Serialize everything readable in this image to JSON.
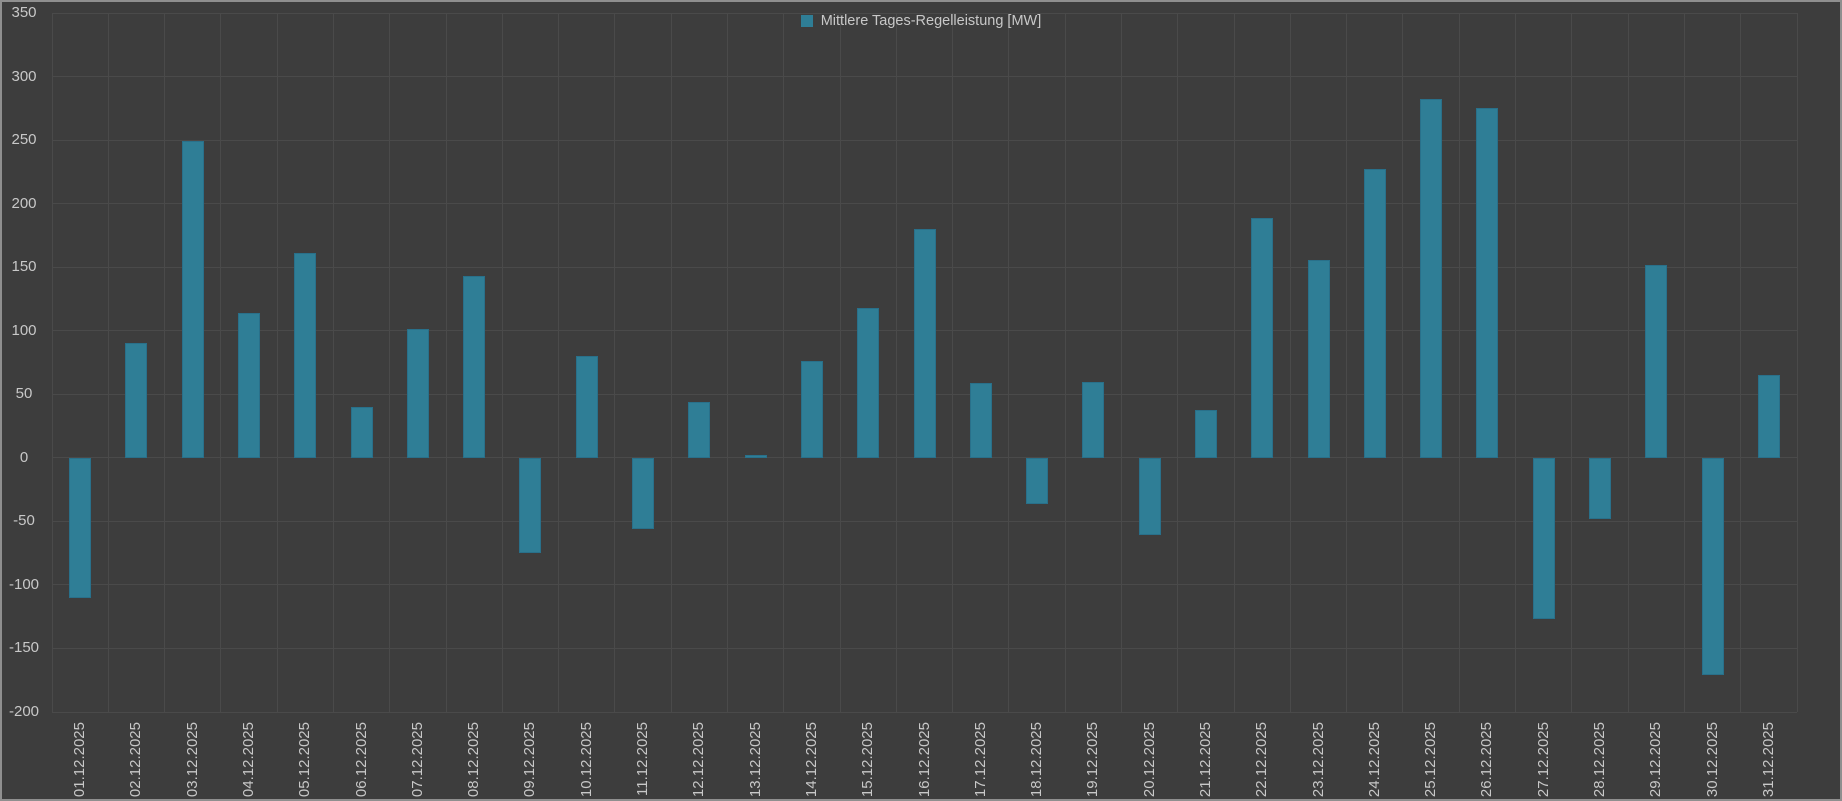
{
  "legend": {
    "label": "Mittlere Tages-Regelleistung [MW]"
  },
  "colors": {
    "background": "#3d3d3d",
    "frame_border": "#8f8f8f",
    "gridline": "#4a4a4a",
    "bar": "#2f7e96",
    "bar_edge": "#29708a",
    "text": "#c8c8c8"
  },
  "y_axis": {
    "ticks": [
      350,
      300,
      250,
      200,
      150,
      100,
      50,
      0,
      -50,
      -100,
      -150,
      -200
    ]
  },
  "chart_data": {
    "type": "bar",
    "title": "",
    "xlabel": "",
    "ylabel": "",
    "legend_entries": [
      "Mittlere Tages-Regelleistung [MW]"
    ],
    "legend_position": "top-center",
    "grid": true,
    "ylim": [
      -200,
      350
    ],
    "ytick_step": 50,
    "categories": [
      "01.12.2025",
      "02.12.2025",
      "03.12.2025",
      "04.12.2025",
      "05.12.2025",
      "06.12.2025",
      "07.12.2025",
      "08.12.2025",
      "09.12.2025",
      "10.12.2025",
      "11.12.2025",
      "12.12.2025",
      "13.12.2025",
      "14.12.2025",
      "15.12.2025",
      "16.12.2025",
      "17.12.2025",
      "18.12.2025",
      "19.12.2025",
      "20.12.2025",
      "21.12.2025",
      "22.12.2025",
      "23.12.2025",
      "24.12.2025",
      "25.12.2025",
      "26.12.2025",
      "27.12.2025",
      "28.12.2025",
      "29.12.2025",
      "30.12.2025",
      "31.12.2025"
    ],
    "series": [
      {
        "name": "Mittlere Tages-Regelleistung [MW]",
        "values": [
          -110,
          90,
          249,
          114,
          161,
          40,
          101,
          143,
          -75,
          80,
          -56,
          44,
          2,
          76,
          118,
          180,
          59,
          -36,
          60,
          -61,
          38,
          189,
          156,
          227,
          282,
          275,
          -127,
          -48,
          152,
          -171,
          65
        ]
      }
    ]
  }
}
